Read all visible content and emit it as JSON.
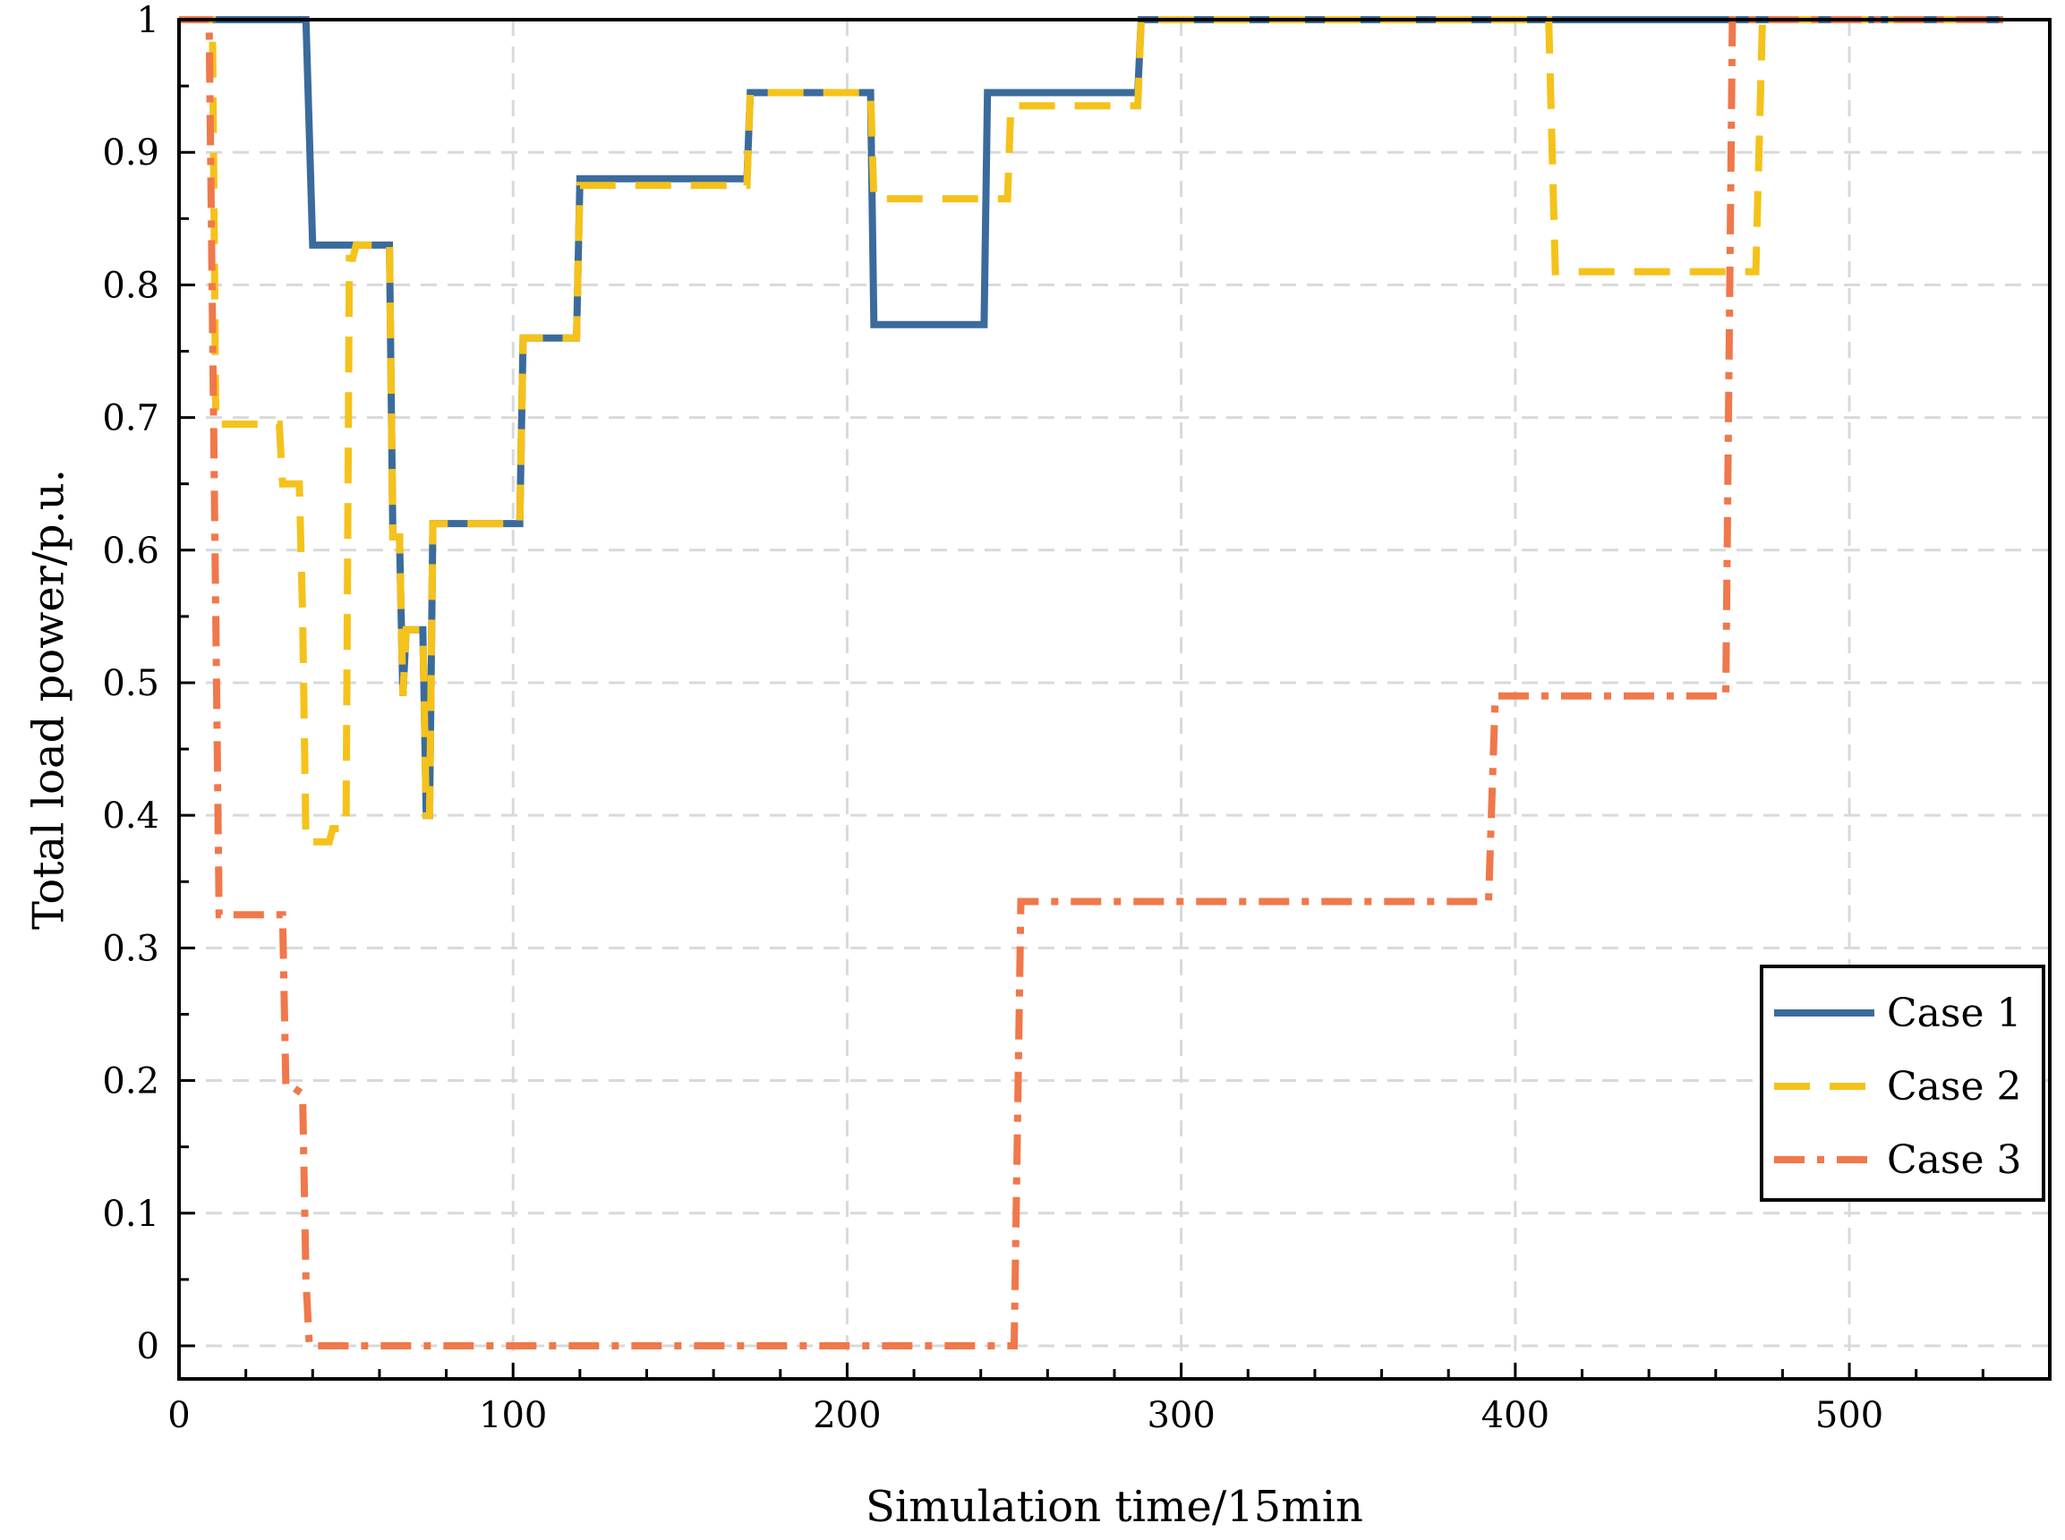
{
  "chart_data": {
    "type": "line",
    "title": "",
    "xlabel": "Simulation time/15min",
    "ylabel": "Total load power/p.u.",
    "xlim": [
      0,
      560
    ],
    "ylim": [
      -0.025,
      1.0
    ],
    "xticks": [
      0,
      100,
      200,
      300,
      400,
      500
    ],
    "yticks": [
      0,
      0.1,
      0.2,
      0.3,
      0.4,
      0.5,
      0.6,
      0.7,
      0.8,
      0.9,
      1
    ],
    "xtick_labels": [
      "0",
      "100",
      "200",
      "300",
      "400",
      "500"
    ],
    "ytick_labels": [
      "0",
      "0.1",
      "0.2",
      "0.3",
      "0.4",
      "0.5",
      "0.6",
      "0.7",
      "0.8",
      "0.9",
      "1"
    ],
    "grid": true,
    "legend_position": "bottom-right",
    "series": [
      {
        "name": "Case 1",
        "color": "#3A6B9C",
        "style": "solid",
        "x": [
          0,
          38,
          40,
          63,
          64,
          66,
          67,
          68,
          69,
          73,
          74,
          75,
          76,
          77,
          78,
          102,
          103,
          119,
          120,
          170,
          171,
          207,
          208,
          241,
          242,
          287,
          288,
          546
        ],
        "y": [
          1,
          1,
          0.83,
          0.83,
          0.61,
          0.61,
          0.49,
          0.54,
          0.54,
          0.54,
          0.4,
          0.4,
          0.62,
          0.62,
          0.62,
          0.62,
          0.76,
          0.76,
          0.88,
          0.88,
          0.945,
          0.945,
          0.77,
          0.77,
          0.945,
          0.945,
          1,
          1
        ]
      },
      {
        "name": "Case 2",
        "color": "#F5C21B",
        "style": "dashed",
        "x": [
          0,
          10,
          11,
          20,
          30,
          31,
          36,
          37,
          38,
          39,
          40,
          45,
          46,
          50,
          51,
          52,
          53,
          63,
          64,
          66,
          67,
          68,
          69,
          73,
          74,
          75,
          76,
          77,
          78,
          102,
          103,
          119,
          120,
          170,
          171,
          207,
          208,
          248,
          249,
          287,
          288,
          410,
          412,
          472,
          474,
          546
        ],
        "y": [
          1,
          1,
          0.695,
          0.695,
          0.695,
          0.65,
          0.65,
          0.55,
          0.38,
          0.38,
          0.38,
          0.38,
          0.39,
          0.39,
          0.82,
          0.82,
          0.83,
          0.83,
          0.61,
          0.61,
          0.49,
          0.54,
          0.54,
          0.54,
          0.4,
          0.4,
          0.62,
          0.62,
          0.62,
          0.62,
          0.76,
          0.76,
          0.875,
          0.875,
          0.945,
          0.945,
          0.865,
          0.865,
          0.935,
          0.935,
          1,
          1,
          0.81,
          0.81,
          1,
          1
        ]
      },
      {
        "name": "Case 3",
        "color": "#F0784A",
        "style": "dashdot",
        "x": [
          0,
          9,
          12,
          30,
          31,
          32,
          34,
          37,
          38,
          39,
          40,
          250,
          252,
          392,
          394,
          463,
          465,
          546
        ],
        "y": [
          1,
          1,
          0.325,
          0.325,
          0.325,
          0.195,
          0.195,
          0.19,
          0.05,
          0.0,
          0.0,
          0.0,
          0.335,
          0.335,
          0.49,
          0.49,
          1,
          1
        ]
      }
    ]
  }
}
